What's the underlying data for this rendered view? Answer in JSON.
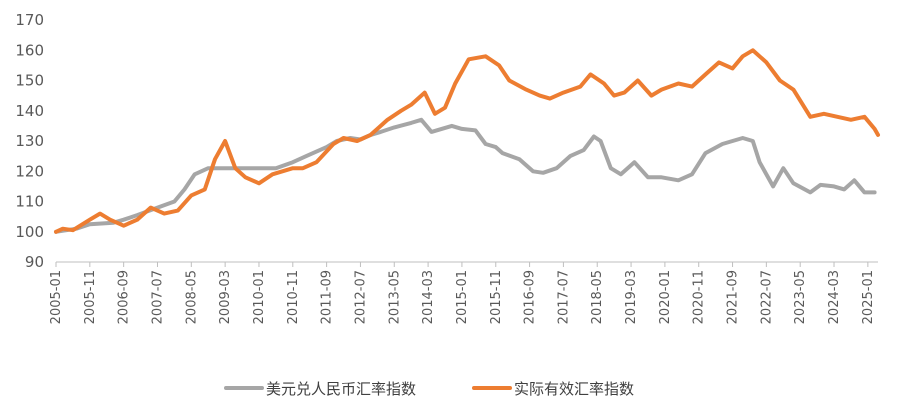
{
  "chart_data": {
    "type": "line",
    "title": "",
    "xlabel": "",
    "ylabel": "",
    "ylim": [
      90,
      170
    ],
    "yticks": [
      "90",
      "100",
      "110",
      "120",
      "130",
      "140",
      "150",
      "160",
      "170"
    ],
    "xticks": [
      "2005-01",
      "2005-11",
      "2006-09",
      "2007-07",
      "2008-05",
      "2009-03",
      "2010-01",
      "2010-11",
      "2011-09",
      "2012-07",
      "2013-05",
      "2014-03",
      "2015-01",
      "2015-11",
      "2016-09",
      "2017-07",
      "2018-05",
      "2019-03",
      "2020-01",
      "2020-11",
      "2021-09",
      "2022-07",
      "2023-05",
      "2024-03",
      "2025-01"
    ],
    "grid": false,
    "legend_position": "bottom",
    "series": [
      {
        "name": "美元兑人民币汇率指数",
        "color": "#a6a6a6",
        "points": [
          [
            "2005-01",
            100
          ],
          [
            "2005-07",
            101
          ],
          [
            "2005-11",
            102.5
          ],
          [
            "2006-06",
            103
          ],
          [
            "2006-09",
            104
          ],
          [
            "2007-01",
            105.5
          ],
          [
            "2007-07",
            108
          ],
          [
            "2007-12",
            110
          ],
          [
            "2008-03",
            114
          ],
          [
            "2008-06",
            119
          ],
          [
            "2008-10",
            121
          ],
          [
            "2009-06",
            121
          ],
          [
            "2010-01",
            121
          ],
          [
            "2010-06",
            121
          ],
          [
            "2010-11",
            123
          ],
          [
            "2011-03",
            125
          ],
          [
            "2011-09",
            128
          ],
          [
            "2011-12",
            130
          ],
          [
            "2012-04",
            131
          ],
          [
            "2012-07",
            130.5
          ],
          [
            "2012-10",
            132
          ],
          [
            "2013-01",
            133
          ],
          [
            "2013-05",
            134.5
          ],
          [
            "2013-10",
            136
          ],
          [
            "2014-01",
            137
          ],
          [
            "2014-04",
            133
          ],
          [
            "2014-10",
            135
          ],
          [
            "2015-01",
            134
          ],
          [
            "2015-05",
            133.5
          ],
          [
            "2015-08",
            129
          ],
          [
            "2015-11",
            128
          ],
          [
            "2016-01",
            126
          ],
          [
            "2016-06",
            124
          ],
          [
            "2016-10",
            120
          ],
          [
            "2017-01",
            119.5
          ],
          [
            "2017-05",
            121
          ],
          [
            "2017-09",
            125
          ],
          [
            "2018-01",
            127
          ],
          [
            "2018-04",
            131.5
          ],
          [
            "2018-06",
            130
          ],
          [
            "2018-09",
            121
          ],
          [
            "2018-12",
            119
          ],
          [
            "2019-04",
            123
          ],
          [
            "2019-08",
            118
          ],
          [
            "2019-12",
            118
          ],
          [
            "2020-05",
            117
          ],
          [
            "2020-09",
            119
          ],
          [
            "2021-01",
            126
          ],
          [
            "2021-06",
            129
          ],
          [
            "2021-12",
            131
          ],
          [
            "2022-03",
            130
          ],
          [
            "2022-05",
            123
          ],
          [
            "2022-09",
            115
          ],
          [
            "2022-12",
            121
          ],
          [
            "2023-03",
            116
          ],
          [
            "2023-08",
            113
          ],
          [
            "2023-11",
            115.5
          ],
          [
            "2024-03",
            115
          ],
          [
            "2024-06",
            114
          ],
          [
            "2024-09",
            117
          ],
          [
            "2024-12",
            113
          ],
          [
            "2025-03",
            113
          ]
        ]
      },
      {
        "name": "实际有效汇率指数",
        "color": "#ed7d31",
        "points": [
          [
            "2005-01",
            100
          ],
          [
            "2005-03",
            101
          ],
          [
            "2005-06",
            100.5
          ],
          [
            "2005-11",
            104
          ],
          [
            "2006-02",
            106
          ],
          [
            "2006-05",
            104
          ],
          [
            "2006-09",
            102
          ],
          [
            "2007-01",
            104
          ],
          [
            "2007-05",
            108
          ],
          [
            "2007-09",
            106
          ],
          [
            "2008-01",
            107
          ],
          [
            "2008-05",
            112
          ],
          [
            "2008-09",
            114
          ],
          [
            "2008-12",
            124
          ],
          [
            "2009-03",
            130
          ],
          [
            "2009-06",
            121
          ],
          [
            "2009-09",
            118
          ],
          [
            "2010-01",
            116
          ],
          [
            "2010-05",
            119
          ],
          [
            "2010-11",
            121
          ],
          [
            "2011-02",
            121
          ],
          [
            "2011-06",
            123
          ],
          [
            "2011-11",
            129
          ],
          [
            "2012-02",
            131
          ],
          [
            "2012-06",
            130
          ],
          [
            "2012-10",
            132
          ],
          [
            "2013-03",
            137
          ],
          [
            "2013-07",
            140
          ],
          [
            "2013-10",
            142
          ],
          [
            "2014-02",
            146
          ],
          [
            "2014-05",
            139
          ],
          [
            "2014-08",
            141
          ],
          [
            "2014-11",
            149
          ],
          [
            "2015-03",
            157
          ],
          [
            "2015-08",
            158
          ],
          [
            "2015-12",
            155
          ],
          [
            "2016-03",
            150
          ],
          [
            "2016-08",
            147
          ],
          [
            "2016-12",
            145
          ],
          [
            "2017-03",
            144
          ],
          [
            "2017-07",
            146
          ],
          [
            "2017-12",
            148
          ],
          [
            "2018-03",
            152
          ],
          [
            "2018-07",
            149
          ],
          [
            "2018-10",
            145
          ],
          [
            "2019-01",
            146
          ],
          [
            "2019-05",
            150
          ],
          [
            "2019-09",
            145
          ],
          [
            "2019-12",
            147
          ],
          [
            "2020-05",
            149
          ],
          [
            "2020-09",
            148
          ],
          [
            "2021-01",
            152
          ],
          [
            "2021-05",
            156
          ],
          [
            "2021-09",
            154
          ],
          [
            "2021-12",
            158
          ],
          [
            "2022-03",
            160
          ],
          [
            "2022-07",
            156
          ],
          [
            "2022-11",
            150
          ],
          [
            "2023-03",
            147
          ],
          [
            "2023-08",
            138
          ],
          [
            "2023-12",
            139
          ],
          [
            "2024-04",
            138
          ],
          [
            "2024-08",
            137
          ],
          [
            "2024-12",
            138
          ],
          [
            "2025-03",
            134
          ],
          [
            "2025-04",
            132
          ]
        ]
      }
    ]
  }
}
